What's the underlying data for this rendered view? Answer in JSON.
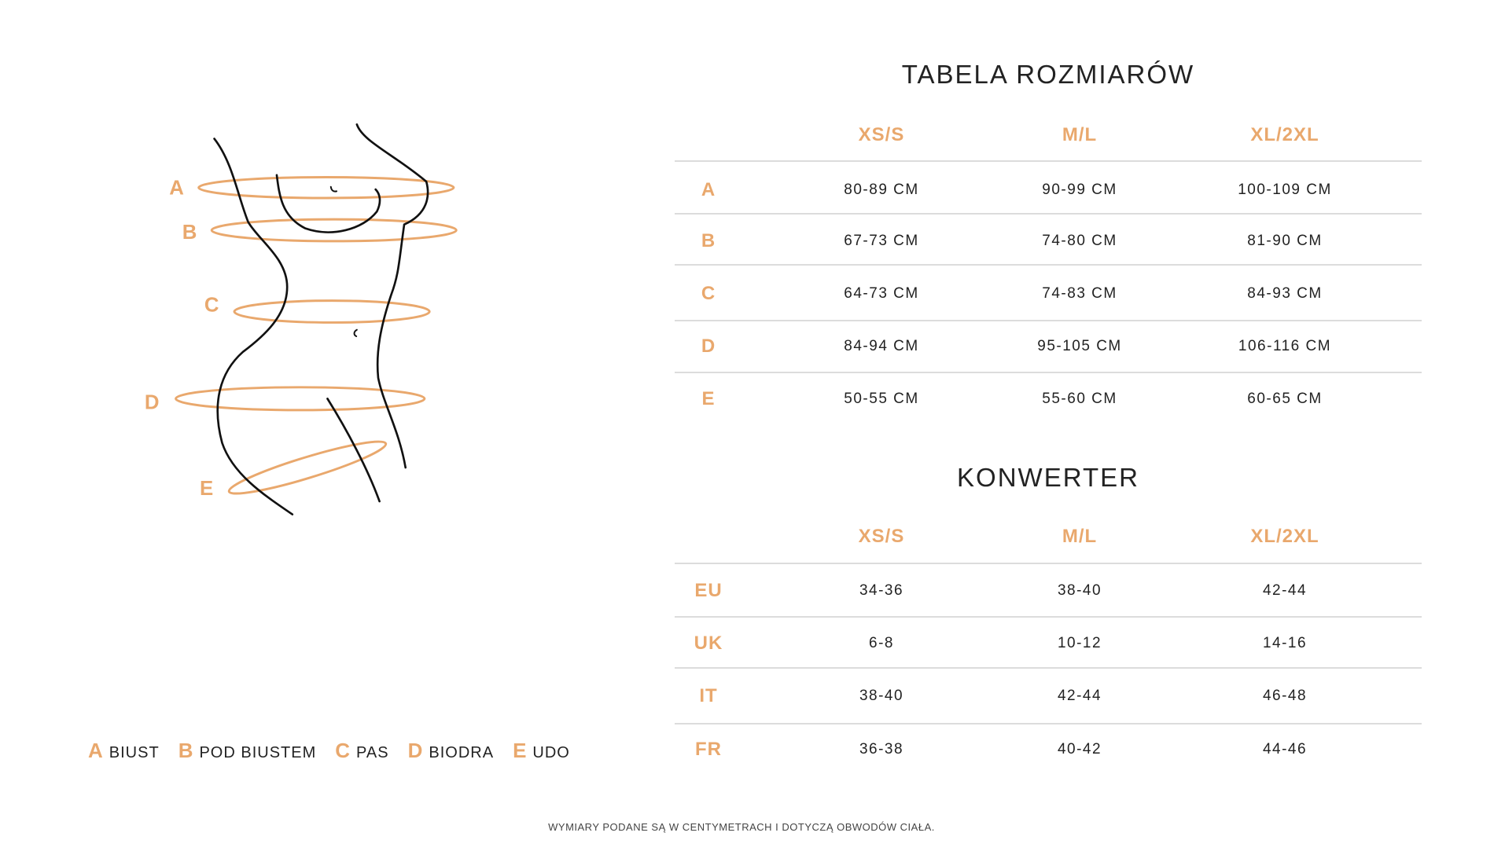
{
  "size_table": {
    "title": "TABELA ROZMIARÓW",
    "columns": [
      "XS/S",
      "M/L",
      "XL/2XL"
    ],
    "rows": [
      {
        "label": "A",
        "values": [
          "80-89 CM",
          "90-99 CM",
          "100-109 CM"
        ]
      },
      {
        "label": "B",
        "values": [
          "67-73 CM",
          "74-80 CM",
          "81-90 CM"
        ]
      },
      {
        "label": "C",
        "values": [
          "64-73 CM",
          "74-83 CM",
          "84-93 CM"
        ]
      },
      {
        "label": "D",
        "values": [
          "84-94 CM",
          "95-105 CM",
          "106-116 CM"
        ]
      },
      {
        "label": "E",
        "values": [
          "50-55 CM",
          "55-60 CM",
          "60-65 CM"
        ]
      }
    ]
  },
  "converter": {
    "title": "KONWERTER",
    "columns": [
      "XS/S",
      "M/L",
      "XL/2XL"
    ],
    "rows": [
      {
        "label": "EU",
        "values": [
          "34-36",
          "38-40",
          "42-44"
        ]
      },
      {
        "label": "UK",
        "values": [
          "6-8",
          "10-12",
          "14-16"
        ]
      },
      {
        "label": "IT",
        "values": [
          "38-40",
          "42-44",
          "46-48"
        ]
      },
      {
        "label": "FR",
        "values": [
          "36-38",
          "40-42",
          "44-46"
        ]
      }
    ]
  },
  "figure_labels": [
    "A",
    "B",
    "C",
    "D",
    "E"
  ],
  "legend": [
    {
      "key": "A",
      "label": "BIUST"
    },
    {
      "key": "B",
      "label": "POD BIUSTEM"
    },
    {
      "key": "C",
      "label": "PAS"
    },
    {
      "key": "D",
      "label": "BIODRA"
    },
    {
      "key": "E",
      "label": "UDO"
    }
  ],
  "footer": "WYMIARY PODANE SĄ W CENTYMETRACH I DOTYCZĄ OBWODÓW CIAŁA.",
  "colors": {
    "accent": "#e9a86d",
    "text": "#222222",
    "divider": "#dcdcdc"
  }
}
